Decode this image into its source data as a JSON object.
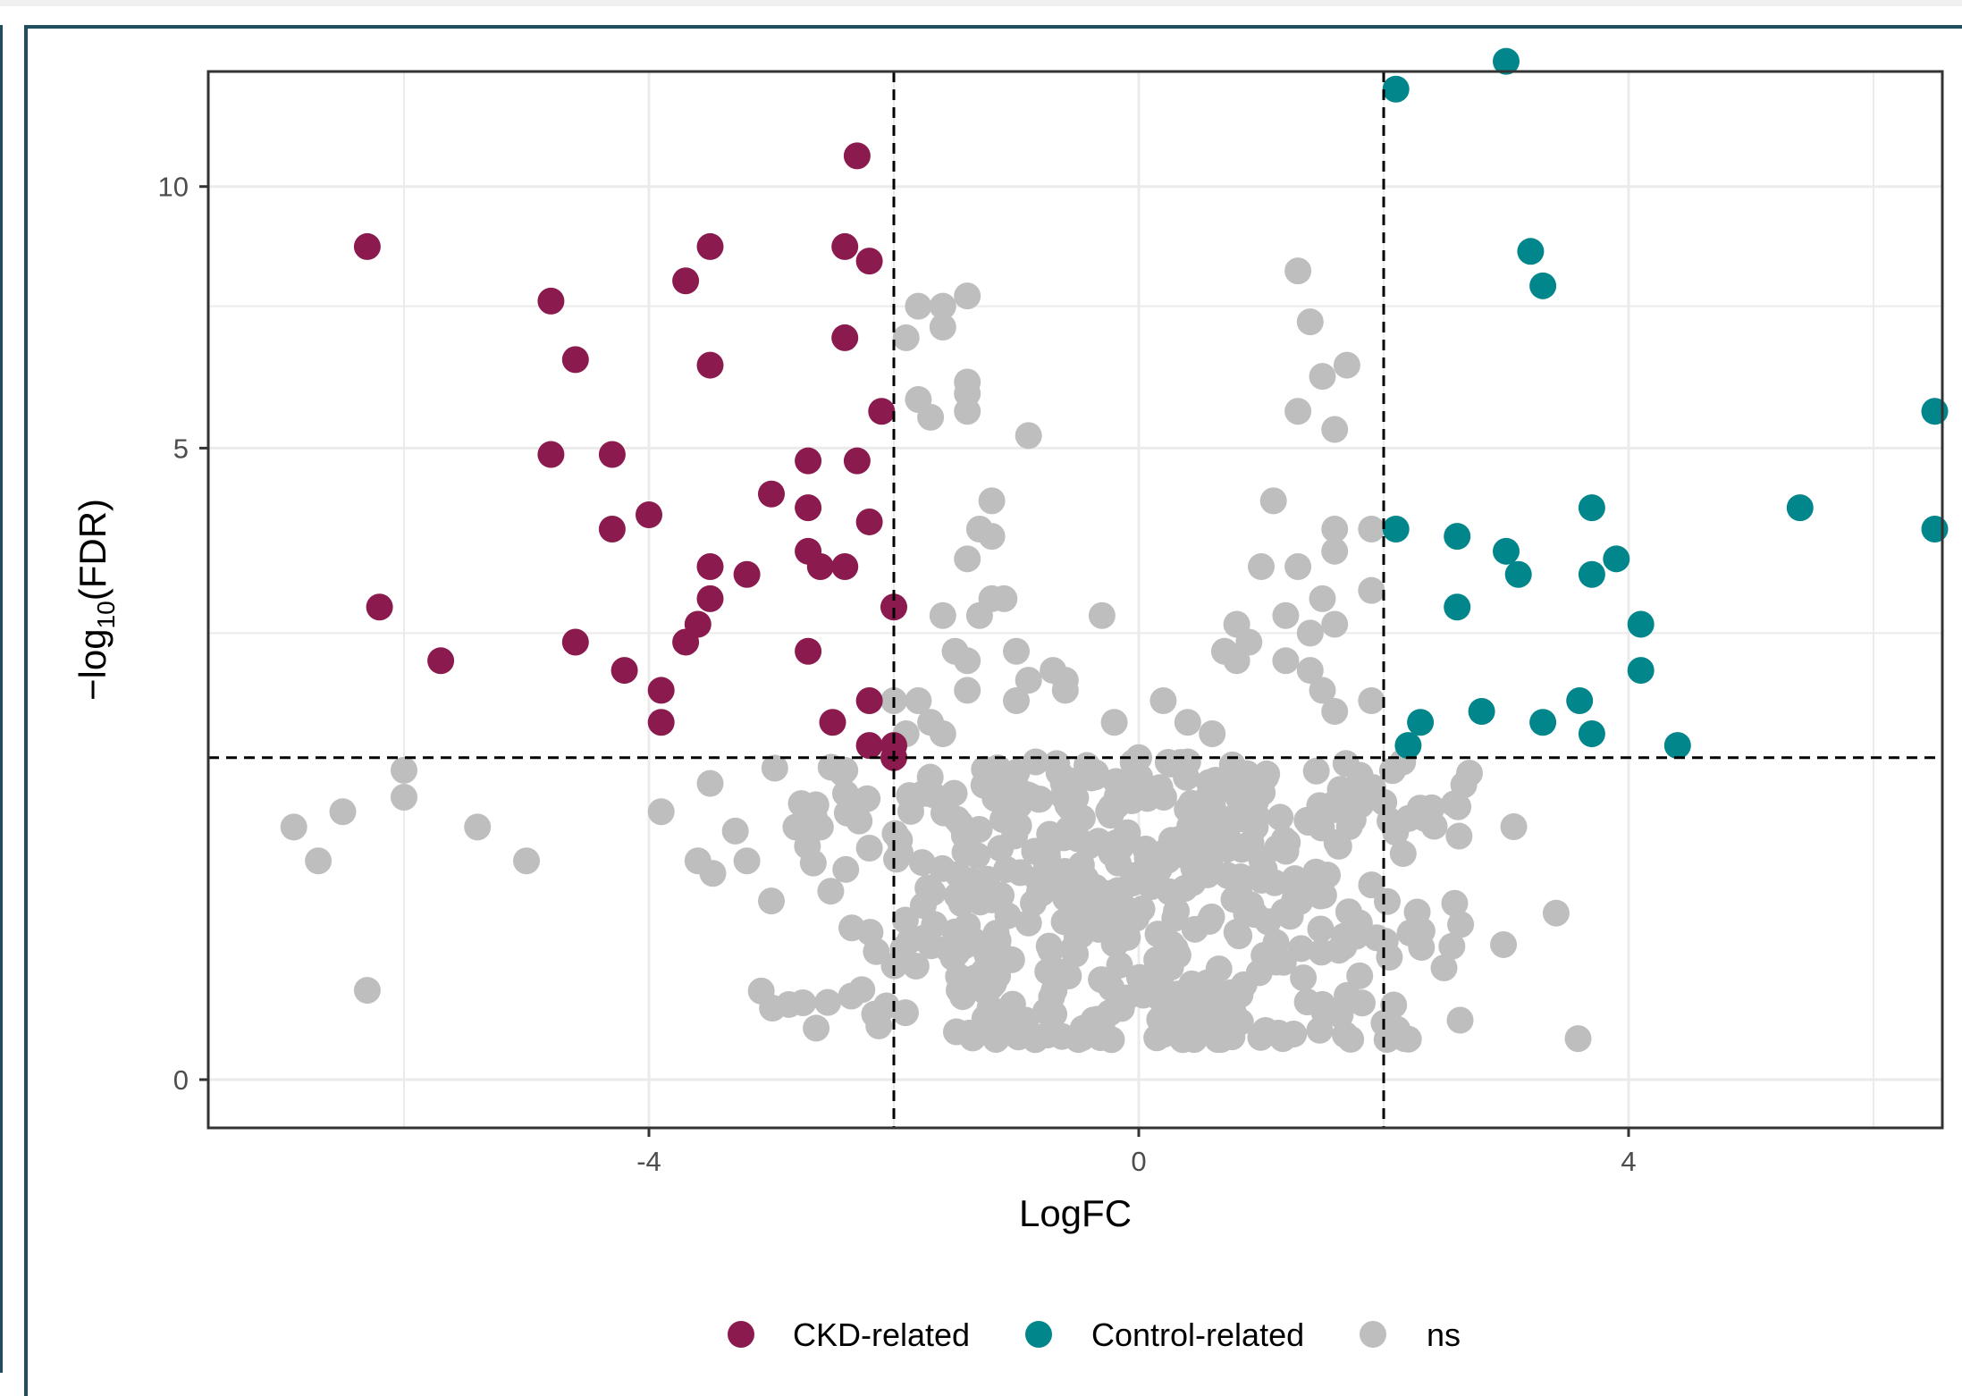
{
  "colors": {
    "ckd": "#8b1a4e",
    "control": "#00868b",
    "ns": "#bebebe",
    "frame": "#1f4e5f",
    "grid": "#ebebeb"
  },
  "chart_data": {
    "type": "scatter",
    "title": "",
    "xlabel": "LogFC",
    "ylabel_parts": {
      "prefix": "−log",
      "subscript": "10",
      "suffix": "(FDR)"
    },
    "xlim": [
      -7.6,
      6.5
    ],
    "ylim": [
      -1.0,
      12.9
    ],
    "y_scale": "-log10 FDR (sqrt-like display)",
    "x_ticks": [
      -4,
      0,
      4
    ],
    "x_tick_labels": [
      "-4",
      "0",
      "4"
    ],
    "y_ticks": [
      0,
      5,
      10
    ],
    "y_tick_labels": [
      "0",
      "5",
      "10"
    ],
    "thresholds": {
      "logfc": [
        -2,
        2
      ],
      "neglog10_fdr": 1.3
    },
    "grid": true,
    "legend_position": "bottom",
    "legend": [
      {
        "label": "CKD-related",
        "color_key": "ckd"
      },
      {
        "label": "Control-related",
        "color_key": "control"
      },
      {
        "label": "ns",
        "color_key": "ns"
      }
    ],
    "series": [
      {
        "name": "CKD-related",
        "color_key": "ckd",
        "points": [
          [
            -6.3,
            8.7
          ],
          [
            -6.2,
            2.8
          ],
          [
            -5.7,
            2.2
          ],
          [
            -4.8,
            7.6
          ],
          [
            -4.8,
            4.9
          ],
          [
            -4.6,
            6.5
          ],
          [
            -4.6,
            2.4
          ],
          [
            -4.3,
            4.9
          ],
          [
            -4.3,
            3.8
          ],
          [
            -4.2,
            2.1
          ],
          [
            -4.0,
            4.0
          ],
          [
            -3.9,
            1.9
          ],
          [
            -3.9,
            1.6
          ],
          [
            -3.7,
            8.0
          ],
          [
            -3.7,
            2.4
          ],
          [
            -3.6,
            2.6
          ],
          [
            -3.5,
            3.3
          ],
          [
            -3.5,
            2.9
          ],
          [
            -3.5,
            8.7
          ],
          [
            -3.5,
            6.4
          ],
          [
            -3.2,
            3.2
          ],
          [
            -3.0,
            4.3
          ],
          [
            -2.7,
            3.5
          ],
          [
            -2.7,
            4.1
          ],
          [
            -2.7,
            4.8
          ],
          [
            -2.7,
            2.3
          ],
          [
            -2.6,
            3.3
          ],
          [
            -2.5,
            1.6
          ],
          [
            -2.4,
            8.7
          ],
          [
            -2.4,
            3.3
          ],
          [
            -2.4,
            6.9
          ],
          [
            -2.3,
            4.8
          ],
          [
            -2.3,
            10.7
          ],
          [
            -2.2,
            8.4
          ],
          [
            -2.2,
            3.9
          ],
          [
            -2.2,
            1.8
          ],
          [
            -2.1,
            5.6
          ],
          [
            -2.0,
            2.8
          ],
          [
            -2.0,
            1.4
          ],
          [
            -2.2,
            1.4
          ],
          [
            -2.0,
            1.3
          ]
        ]
      },
      {
        "name": "Control-related",
        "color_key": "control",
        "points": [
          [
            2.1,
            12.3
          ],
          [
            3.0,
            13.0
          ],
          [
            3.2,
            8.6
          ],
          [
            3.3,
            7.9
          ],
          [
            2.1,
            3.8
          ],
          [
            2.6,
            3.7
          ],
          [
            3.0,
            3.5
          ],
          [
            3.1,
            3.2
          ],
          [
            2.6,
            2.8
          ],
          [
            3.7,
            4.1
          ],
          [
            3.7,
            3.2
          ],
          [
            3.9,
            3.4
          ],
          [
            4.1,
            2.6
          ],
          [
            4.1,
            2.1
          ],
          [
            2.2,
            1.4
          ],
          [
            2.3,
            1.6
          ],
          [
            2.8,
            1.7
          ],
          [
            3.3,
            1.6
          ],
          [
            3.6,
            1.8
          ],
          [
            3.7,
            1.5
          ],
          [
            4.4,
            1.4
          ],
          [
            5.4,
            4.1
          ],
          [
            6.5,
            5.6
          ],
          [
            6.5,
            3.8
          ]
        ]
      },
      {
        "name": "ns",
        "color_key": "ns",
        "points": [
          [
            -6.3,
            0.1
          ],
          [
            -6.0,
            1.2
          ],
          [
            -6.0,
            1.0
          ],
          [
            -6.5,
            0.9
          ],
          [
            -6.9,
            0.8
          ],
          [
            -6.7,
            0.6
          ],
          [
            -5.4,
            0.8
          ],
          [
            -5.0,
            0.6
          ],
          [
            -3.9,
            0.9
          ],
          [
            -3.5,
            1.1
          ],
          [
            -3.6,
            0.6
          ],
          [
            -3.2,
            0.6
          ],
          [
            -3.0,
            0.4
          ],
          [
            -2.8,
            0.8
          ],
          [
            -2.6,
            0.8
          ],
          [
            -2.4,
            1.2
          ],
          [
            -2.0,
            1.8
          ],
          [
            -1.9,
            1.5
          ],
          [
            -1.7,
            1.6
          ],
          [
            -1.6,
            1.5
          ],
          [
            -1.5,
            2.3
          ],
          [
            -1.4,
            2.2
          ],
          [
            -1.3,
            2.7
          ],
          [
            -1.2,
            2.9
          ],
          [
            -1.1,
            2.9
          ],
          [
            -1.0,
            2.3
          ],
          [
            -0.9,
            2.0
          ],
          [
            -0.7,
            2.1
          ],
          [
            -0.6,
            2.0
          ],
          [
            -0.3,
            2.7
          ],
          [
            -1.4,
            3.4
          ],
          [
            -1.3,
            3.8
          ],
          [
            -1.2,
            4.2
          ],
          [
            -1.2,
            3.7
          ],
          [
            -1.4,
            5.9
          ],
          [
            -1.4,
            6.1
          ],
          [
            -1.6,
            7.1
          ],
          [
            -1.6,
            7.5
          ],
          [
            -1.8,
            7.5
          ],
          [
            -1.4,
            7.7
          ],
          [
            -1.9,
            6.9
          ],
          [
            -1.8,
            5.8
          ],
          [
            -1.7,
            5.5
          ],
          [
            -1.4,
            5.6
          ],
          [
            -0.9,
            5.2
          ],
          [
            1.3,
            8.2
          ],
          [
            1.4,
            7.2
          ],
          [
            1.5,
            6.2
          ],
          [
            1.7,
            6.4
          ],
          [
            1.3,
            5.6
          ],
          [
            1.6,
            5.3
          ],
          [
            1.1,
            4.2
          ],
          [
            1.6,
            3.8
          ],
          [
            1.6,
            3.5
          ],
          [
            1.9,
            3.8
          ],
          [
            1.0,
            3.3
          ],
          [
            1.3,
            3.3
          ],
          [
            1.5,
            2.9
          ],
          [
            1.6,
            2.6
          ],
          [
            1.9,
            3.0
          ],
          [
            1.2,
            2.7
          ],
          [
            1.4,
            2.5
          ],
          [
            0.7,
            2.3
          ],
          [
            0.8,
            2.2
          ],
          [
            1.2,
            2.2
          ],
          [
            0.8,
            2.6
          ],
          [
            0.9,
            2.4
          ],
          [
            1.4,
            2.1
          ],
          [
            1.5,
            1.9
          ],
          [
            1.6,
            1.7
          ],
          [
            1.9,
            1.8
          ],
          [
            -1.6,
            2.7
          ],
          [
            -1.8,
            1.8
          ],
          [
            -1.4,
            1.9
          ],
          [
            -1.0,
            1.8
          ],
          [
            -0.6,
            1.9
          ],
          [
            0.2,
            1.8
          ],
          [
            0.4,
            1.6
          ],
          [
            0.6,
            1.5
          ],
          [
            -0.2,
            1.6
          ],
          [
            0.0,
            1.3
          ]
        ]
      }
    ],
    "ns_cloud_note": ""
  },
  "legend_labels": {
    "ckd": "CKD-related",
    "control": "Control-related",
    "ns": "ns"
  }
}
